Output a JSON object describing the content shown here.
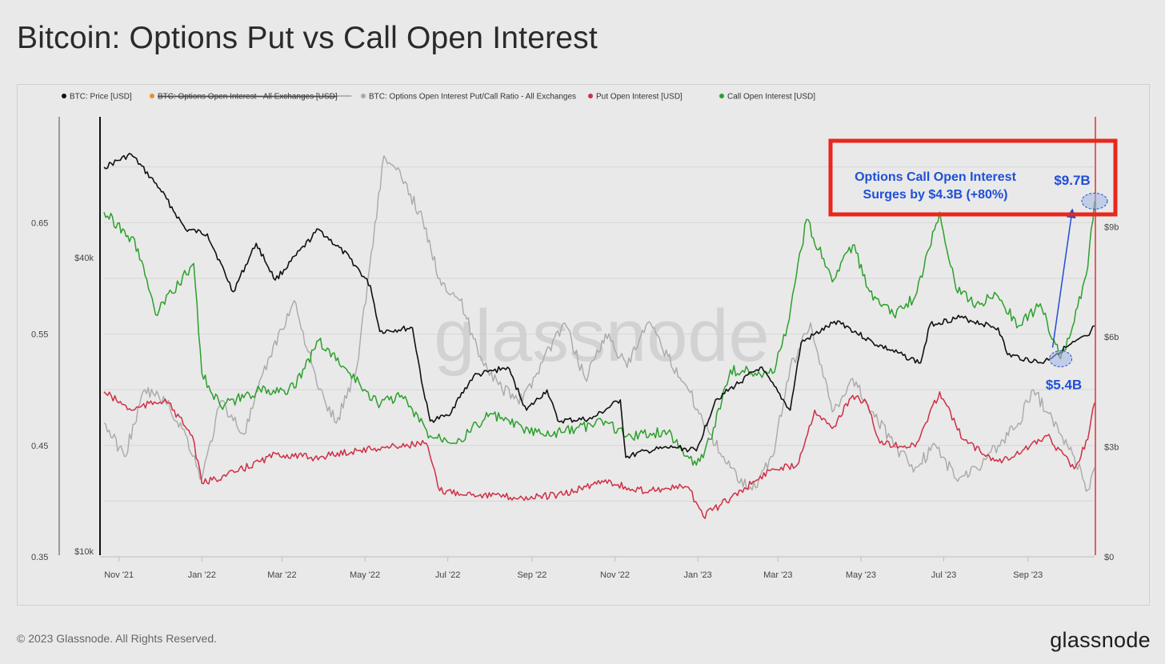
{
  "header": {
    "title": "Bitcoin: Options Put vs Call Open Interest"
  },
  "footer": {
    "copyright": "© 2023 Glassnode. All Rights Reserved.",
    "logo": "glassnode"
  },
  "watermark": "glassnode",
  "chart_data": {
    "type": "line",
    "legend_position": "top-left",
    "grid": true,
    "x_ticks": [
      "Nov '21",
      "Jan '22",
      "Mar '22",
      "May '22",
      "Jul '22",
      "Sep '22",
      "Nov '22",
      "Jan '23",
      "Mar '23",
      "May '23",
      "Jul '23",
      "Sep '23"
    ],
    "x_range": [
      "2021-10-21",
      "2023-10-20"
    ],
    "axes": {
      "ratio": {
        "ticks": [
          "0.65",
          "0.55",
          "0.45",
          "0.35"
        ],
        "tick_values": [
          0.65,
          0.55,
          0.45,
          0.35
        ],
        "range": [
          0.35,
          0.745
        ]
      },
      "price": {
        "ticks": [
          "$40k",
          "$10k"
        ],
        "tick_values": [
          40000,
          10000
        ],
        "scale": "log",
        "range": [
          10000,
          80000
        ]
      },
      "oi": {
        "ticks": [
          "$9b",
          "$6b",
          "$3b",
          "$0"
        ],
        "tick_values": [
          9,
          6,
          3,
          0
        ],
        "unit": "billion USD",
        "range": [
          0,
          12
        ]
      }
    },
    "series": [
      {
        "name": "BTC: Price [USD]",
        "color": "#111111",
        "axis": "price",
        "visible": true,
        "points": [
          [
            "2021-10-21",
            63000
          ],
          [
            "2021-11-10",
            67000
          ],
          [
            "2021-12-01",
            57000
          ],
          [
            "2021-12-20",
            47000
          ],
          [
            "2022-01-05",
            46000
          ],
          [
            "2022-01-24",
            35000
          ],
          [
            "2022-02-10",
            44000
          ],
          [
            "2022-02-24",
            37000
          ],
          [
            "2022-03-28",
            47000
          ],
          [
            "2022-04-20",
            41000
          ],
          [
            "2022-05-05",
            36000
          ],
          [
            "2022-05-12",
            29000
          ],
          [
            "2022-06-05",
            29500
          ],
          [
            "2022-06-13",
            22000
          ],
          [
            "2022-06-18",
            19000
          ],
          [
            "2022-07-01",
            19500
          ],
          [
            "2022-07-20",
            23500
          ],
          [
            "2022-08-14",
            24500
          ],
          [
            "2022-08-28",
            20000
          ],
          [
            "2022-09-12",
            22000
          ],
          [
            "2022-09-20",
            19000
          ],
          [
            "2022-10-15",
            19200
          ],
          [
            "2022-11-05",
            21000
          ],
          [
            "2022-11-09",
            16000
          ],
          [
            "2022-11-25",
            16500
          ],
          [
            "2022-12-15",
            16800
          ],
          [
            "2022-12-31",
            16500
          ],
          [
            "2023-01-14",
            21000
          ],
          [
            "2023-02-16",
            24500
          ],
          [
            "2023-03-10",
            20000
          ],
          [
            "2023-03-18",
            27500
          ],
          [
            "2023-04-14",
            30500
          ],
          [
            "2023-05-10",
            27500
          ],
          [
            "2023-06-14",
            25000
          ],
          [
            "2023-06-21",
            30000
          ],
          [
            "2023-07-13",
            31000
          ],
          [
            "2023-08-10",
            29500
          ],
          [
            "2023-08-17",
            26000
          ],
          [
            "2023-09-11",
            25000
          ],
          [
            "2023-09-30",
            27000
          ],
          [
            "2023-10-16",
            28500
          ],
          [
            "2023-10-20",
            29800
          ]
        ]
      },
      {
        "name": "BTC: Options Open Interest - All Exchanges [USD]",
        "color": "#e8902a",
        "axis": "oi",
        "visible": false,
        "points": []
      },
      {
        "name": "BTC: Options Open Interest Put/Call Ratio - All Exchanges",
        "color": "#a9a9a9",
        "axis": "ratio",
        "visible": true,
        "points": [
          [
            "2021-10-21",
            0.47
          ],
          [
            "2021-11-05",
            0.44
          ],
          [
            "2021-11-20",
            0.5
          ],
          [
            "2021-12-05",
            0.49
          ],
          [
            "2021-12-20",
            0.46
          ],
          [
            "2022-01-01",
            0.42
          ],
          [
            "2022-01-15",
            0.49
          ],
          [
            "2022-02-01",
            0.46
          ],
          [
            "2022-02-20",
            0.53
          ],
          [
            "2022-03-10",
            0.58
          ],
          [
            "2022-03-28",
            0.5
          ],
          [
            "2022-04-10",
            0.47
          ],
          [
            "2022-04-25",
            0.52
          ],
          [
            "2022-05-15",
            0.71
          ],
          [
            "2022-05-28",
            0.69
          ],
          [
            "2022-06-10",
            0.66
          ],
          [
            "2022-06-25",
            0.6
          ],
          [
            "2022-07-10",
            0.58
          ],
          [
            "2022-07-25",
            0.53
          ],
          [
            "2022-08-10",
            0.5
          ],
          [
            "2022-08-25",
            0.49
          ],
          [
            "2022-09-10",
            0.53
          ],
          [
            "2022-09-25",
            0.56
          ],
          [
            "2022-10-10",
            0.51
          ],
          [
            "2022-10-25",
            0.55
          ],
          [
            "2022-11-10",
            0.52
          ],
          [
            "2022-11-25",
            0.56
          ],
          [
            "2022-12-10",
            0.53
          ],
          [
            "2022-12-25",
            0.5
          ],
          [
            "2023-01-10",
            0.46
          ],
          [
            "2023-01-25",
            0.43
          ],
          [
            "2023-02-10",
            0.41
          ],
          [
            "2023-02-25",
            0.44
          ],
          [
            "2023-03-10",
            0.52
          ],
          [
            "2023-03-25",
            0.56
          ],
          [
            "2023-04-10",
            0.48
          ],
          [
            "2023-04-25",
            0.51
          ],
          [
            "2023-05-10",
            0.48
          ],
          [
            "2023-05-25",
            0.45
          ],
          [
            "2023-06-10",
            0.43
          ],
          [
            "2023-06-25",
            0.45
          ],
          [
            "2023-07-10",
            0.42
          ],
          [
            "2023-07-25",
            0.43
          ],
          [
            "2023-08-10",
            0.45
          ],
          [
            "2023-08-25",
            0.47
          ],
          [
            "2023-09-05",
            0.5
          ],
          [
            "2023-09-15",
            0.48
          ],
          [
            "2023-09-25",
            0.46
          ],
          [
            "2023-10-05",
            0.44
          ],
          [
            "2023-10-15",
            0.41
          ],
          [
            "2023-10-20",
            0.43
          ]
        ]
      },
      {
        "name": "Put Open Interest [USD]",
        "color": "#cf2f45",
        "axis": "oi",
        "visible": true,
        "points": [
          [
            "2021-10-21",
            4.5
          ],
          [
            "2021-11-10",
            4.0
          ],
          [
            "2021-12-05",
            4.3
          ],
          [
            "2021-12-25",
            3.3
          ],
          [
            "2022-01-01",
            2.0
          ],
          [
            "2022-01-25",
            2.3
          ],
          [
            "2022-02-25",
            2.8
          ],
          [
            "2022-03-25",
            2.7
          ],
          [
            "2022-04-25",
            2.9
          ],
          [
            "2022-05-20",
            3.0
          ],
          [
            "2022-06-15",
            3.1
          ],
          [
            "2022-06-25",
            1.8
          ],
          [
            "2022-07-25",
            1.7
          ],
          [
            "2022-08-25",
            1.6
          ],
          [
            "2022-09-25",
            1.7
          ],
          [
            "2022-10-25",
            2.1
          ],
          [
            "2022-11-15",
            1.8
          ],
          [
            "2022-12-25",
            1.9
          ],
          [
            "2023-01-05",
            1.1
          ],
          [
            "2023-01-25",
            1.6
          ],
          [
            "2023-02-25",
            2.4
          ],
          [
            "2023-03-15",
            2.5
          ],
          [
            "2023-03-28",
            4.0
          ],
          [
            "2023-04-10",
            3.5
          ],
          [
            "2023-04-25",
            4.4
          ],
          [
            "2023-05-05",
            4.2
          ],
          [
            "2023-05-15",
            3.1
          ],
          [
            "2023-06-10",
            3.0
          ],
          [
            "2023-06-28",
            4.5
          ],
          [
            "2023-07-15",
            3.2
          ],
          [
            "2023-08-10",
            2.6
          ],
          [
            "2023-08-28",
            2.9
          ],
          [
            "2023-09-15",
            3.3
          ],
          [
            "2023-10-05",
            2.4
          ],
          [
            "2023-10-15",
            3.2
          ],
          [
            "2023-10-20",
            4.2
          ]
        ]
      },
      {
        "name": "Call Open Interest [USD]",
        "color": "#2ca02c",
        "axis": "oi",
        "visible": true,
        "points": [
          [
            "2021-10-21",
            9.4
          ],
          [
            "2021-11-05",
            8.9
          ],
          [
            "2021-11-15",
            8.4
          ],
          [
            "2021-11-28",
            6.6
          ],
          [
            "2021-12-10",
            7.2
          ],
          [
            "2021-12-26",
            8.0
          ],
          [
            "2022-01-01",
            5.0
          ],
          [
            "2022-01-15",
            4.1
          ],
          [
            "2022-02-10",
            4.5
          ],
          [
            "2022-03-10",
            4.6
          ],
          [
            "2022-03-28",
            5.9
          ],
          [
            "2022-04-20",
            5.0
          ],
          [
            "2022-05-10",
            4.2
          ],
          [
            "2022-05-28",
            4.4
          ],
          [
            "2022-06-18",
            3.3
          ],
          [
            "2022-07-10",
            3.2
          ],
          [
            "2022-08-01",
            3.9
          ],
          [
            "2022-08-25",
            3.5
          ],
          [
            "2022-09-10",
            3.3
          ],
          [
            "2022-09-25",
            3.4
          ],
          [
            "2022-10-25",
            3.7
          ],
          [
            "2022-11-10",
            3.3
          ],
          [
            "2022-12-10",
            3.4
          ],
          [
            "2022-12-31",
            2.5
          ],
          [
            "2023-01-10",
            3.2
          ],
          [
            "2023-01-25",
            5.1
          ],
          [
            "2023-02-25",
            5.0
          ],
          [
            "2023-03-08",
            6.3
          ],
          [
            "2023-03-22",
            9.2
          ],
          [
            "2023-04-10",
            7.5
          ],
          [
            "2023-04-25",
            8.5
          ],
          [
            "2023-05-10",
            7.0
          ],
          [
            "2023-05-25",
            6.6
          ],
          [
            "2023-06-10",
            7.1
          ],
          [
            "2023-06-28",
            9.4
          ],
          [
            "2023-07-10",
            7.3
          ],
          [
            "2023-07-25",
            6.9
          ],
          [
            "2023-08-10",
            7.1
          ],
          [
            "2023-08-25",
            6.3
          ],
          [
            "2023-09-10",
            6.9
          ],
          [
            "2023-09-25",
            5.4
          ],
          [
            "2023-10-05",
            6.4
          ],
          [
            "2023-10-15",
            7.9
          ],
          [
            "2023-10-20",
            9.7
          ]
        ]
      }
    ],
    "annotations": {
      "box_line1": "Options Call Open Interest",
      "box_line2": "Surges by $4.3B (+80%)",
      "start_label": "$5.4B",
      "end_label": "$9.7B",
      "start_point": [
        "2023-09-25",
        5.4
      ],
      "end_point": [
        "2023-10-20",
        9.7
      ],
      "box_color": "#e8281c",
      "text_color": "#1f4fd6"
    }
  }
}
